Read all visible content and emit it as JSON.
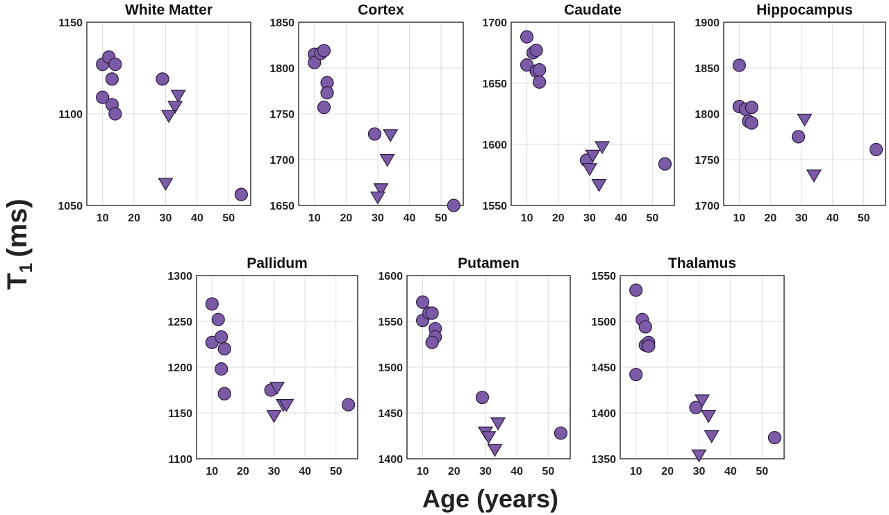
{
  "figure": {
    "ylabel_main": "T",
    "ylabel_sub": "1",
    "ylabel_unit": "(ms)",
    "xlabel": "Age (years)"
  },
  "colors": {
    "marker_fill": "#7b5aa6",
    "marker_edge": "#2b1d3f"
  },
  "chart_data": [
    {
      "type": "scatter",
      "title": "White Matter",
      "xlim": [
        5,
        57
      ],
      "ylim": [
        1050,
        1150
      ],
      "xticks": [
        10,
        20,
        30,
        40,
        50
      ],
      "yticks": [
        1050,
        1100,
        1150
      ],
      "series": [
        {
          "marker": "circle",
          "x": [
            10,
            12,
            14,
            10,
            13,
            13,
            14,
            29,
            54
          ],
          "y": [
            1127,
            1131,
            1127,
            1109,
            1119,
            1105,
            1100,
            1119,
            1056
          ]
        },
        {
          "marker": "triangle",
          "x": [
            34,
            33,
            31,
            30
          ],
          "y": [
            1110,
            1104,
            1099,
            1062
          ]
        }
      ]
    },
    {
      "type": "scatter",
      "title": "Cortex",
      "xlim": [
        5,
        57
      ],
      "ylim": [
        1650,
        1850
      ],
      "xticks": [
        10,
        20,
        30,
        40,
        50
      ],
      "yticks": [
        1650,
        1700,
        1750,
        1800,
        1850
      ],
      "series": [
        {
          "marker": "circle",
          "x": [
            10,
            10,
            12,
            13,
            14,
            14,
            13,
            29,
            54
          ],
          "y": [
            1815,
            1806,
            1816,
            1819,
            1784,
            1773,
            1757,
            1728,
            1650
          ]
        },
        {
          "marker": "triangle",
          "x": [
            34,
            33,
            31,
            30
          ],
          "y": [
            1727,
            1700,
            1668,
            1659
          ]
        }
      ]
    },
    {
      "type": "scatter",
      "title": "Caudate",
      "xlim": [
        5,
        57
      ],
      "ylim": [
        1550,
        1700
      ],
      "xticks": [
        10,
        20,
        30,
        40,
        50
      ],
      "yticks": [
        1550,
        1600,
        1650,
        1700
      ],
      "series": [
        {
          "marker": "circle",
          "x": [
            10,
            10,
            12,
            13,
            13,
            14,
            14,
            29,
            54
          ],
          "y": [
            1688,
            1665,
            1675,
            1677,
            1660,
            1661,
            1651,
            1587,
            1584
          ]
        },
        {
          "marker": "triangle",
          "x": [
            34,
            31,
            30,
            33
          ],
          "y": [
            1598,
            1591,
            1580,
            1567
          ]
        }
      ]
    },
    {
      "type": "scatter",
      "title": "Hippocampus",
      "xlim": [
        5,
        57
      ],
      "ylim": [
        1700,
        1900
      ],
      "xticks": [
        10,
        20,
        30,
        40,
        50
      ],
      "yticks": [
        1700,
        1750,
        1800,
        1850,
        1900
      ],
      "series": [
        {
          "marker": "circle",
          "x": [
            10,
            10,
            12,
            14,
            13,
            14,
            29,
            54
          ],
          "y": [
            1853,
            1808,
            1805,
            1807,
            1792,
            1790,
            1775,
            1761
          ]
        },
        {
          "marker": "triangle",
          "x": [
            31,
            34
          ],
          "y": [
            1794,
            1733
          ]
        }
      ]
    },
    {
      "type": "scatter",
      "title": "Pallidum",
      "xlim": [
        5,
        57
      ],
      "ylim": [
        1100,
        1300
      ],
      "xticks": [
        10,
        20,
        30,
        40,
        50
      ],
      "yticks": [
        1100,
        1150,
        1200,
        1250,
        1300
      ],
      "series": [
        {
          "marker": "circle",
          "x": [
            10,
            12,
            10,
            13,
            14,
            13,
            14,
            29,
            54
          ],
          "y": [
            1269,
            1252,
            1227,
            1233,
            1220,
            1198,
            1171,
            1175,
            1159
          ]
        },
        {
          "marker": "triangle",
          "x": [
            31,
            33,
            34,
            30
          ],
          "y": [
            1178,
            1159,
            1159,
            1147
          ]
        }
      ]
    },
    {
      "type": "scatter",
      "title": "Putamen",
      "xlim": [
        5,
        57
      ],
      "ylim": [
        1400,
        1600
      ],
      "xticks": [
        10,
        20,
        30,
        40,
        50
      ],
      "yticks": [
        1400,
        1450,
        1500,
        1550,
        1600
      ],
      "series": [
        {
          "marker": "circle",
          "x": [
            10,
            10,
            12,
            13,
            14,
            14,
            13,
            29,
            54
          ],
          "y": [
            1571,
            1551,
            1559,
            1559,
            1542,
            1533,
            1527,
            1467,
            1428
          ]
        },
        {
          "marker": "triangle",
          "x": [
            34,
            30,
            31,
            33
          ],
          "y": [
            1439,
            1429,
            1424,
            1410
          ]
        }
      ]
    },
    {
      "type": "scatter",
      "title": "Thalamus",
      "xlim": [
        5,
        57
      ],
      "ylim": [
        1350,
        1550
      ],
      "xticks": [
        10,
        20,
        30,
        40,
        50
      ],
      "yticks": [
        1350,
        1400,
        1450,
        1500,
        1550
      ],
      "series": [
        {
          "marker": "circle",
          "x": [
            10,
            12,
            13,
            13,
            14,
            14,
            10,
            29,
            54
          ],
          "y": [
            1534,
            1502,
            1494,
            1474,
            1477,
            1473,
            1442,
            1406,
            1373
          ]
        },
        {
          "marker": "triangle",
          "x": [
            31,
            33,
            34,
            30
          ],
          "y": [
            1414,
            1397,
            1375,
            1354
          ]
        }
      ]
    }
  ]
}
